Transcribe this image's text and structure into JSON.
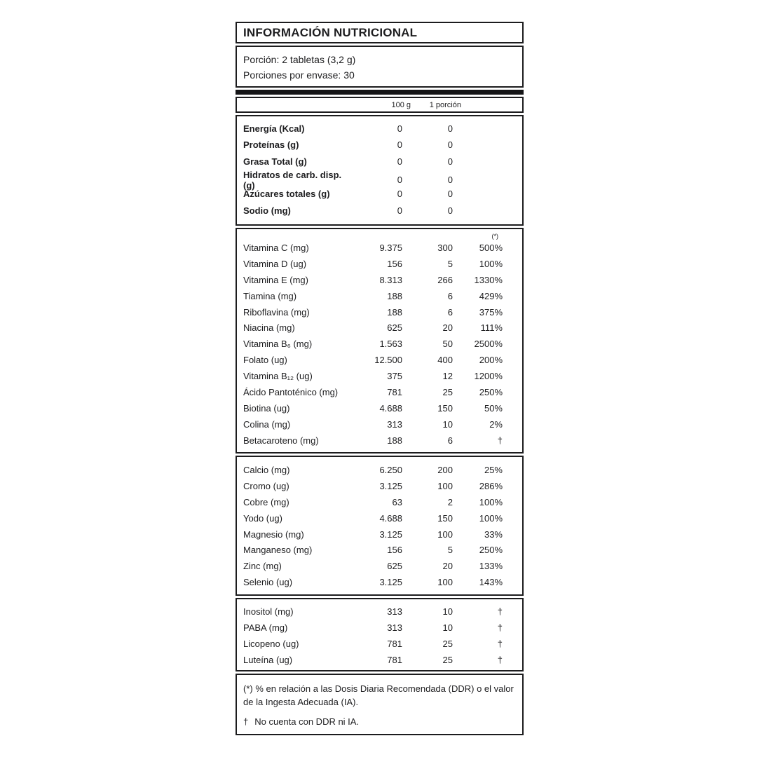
{
  "label": {
    "title": "INFORMACIÓN NUTRICIONAL",
    "serving": {
      "line1": "Porción: 2 tabletas (3,2 g)",
      "line2": "Porciones por envase: 30"
    },
    "columns": {
      "per100": "100 g",
      "perPortion": "1 porción",
      "pct_note_mark": "(*)"
    },
    "sections": {
      "macros": [
        {
          "name": "Energía (Kcal)",
          "per100": "0",
          "portion": "0",
          "pct": ""
        },
        {
          "name": "Proteínas (g)",
          "per100": "0",
          "portion": "0",
          "pct": ""
        },
        {
          "name": "Grasa Total (g)",
          "per100": "0",
          "portion": "0",
          "pct": ""
        },
        {
          "name": "Hidratos de carb. disp. (g)",
          "per100": "0",
          "portion": "0",
          "pct": ""
        },
        {
          "name": "Azúcares totales (g)",
          "per100": "0",
          "portion": "0",
          "pct": ""
        },
        {
          "name": "Sodio (mg)",
          "per100": "0",
          "portion": "0",
          "pct": ""
        }
      ],
      "vitamins": [
        {
          "name": "Vitamina C (mg)",
          "per100": "9.375",
          "portion": "300",
          "pct": "500%"
        },
        {
          "name": "Vitamina D (ug)",
          "per100": "156",
          "portion": "5",
          "pct": "100%"
        },
        {
          "name": "Vitamina E (mg)",
          "per100": "8.313",
          "portion": "266",
          "pct": "1330%"
        },
        {
          "name": "Tiamina (mg)",
          "per100": "188",
          "portion": "6",
          "pct": "429%"
        },
        {
          "name": "Riboflavina (mg)",
          "per100": "188",
          "portion": "6",
          "pct": "375%"
        },
        {
          "name": "Niacina (mg)",
          "per100": "625",
          "portion": "20",
          "pct": "111%"
        },
        {
          "name": "Vitamina B₆ (mg)",
          "per100": "1.563",
          "portion": "50",
          "pct": "2500%"
        },
        {
          "name": "Folato (ug)",
          "per100": "12.500",
          "portion": "400",
          "pct": "200%"
        },
        {
          "name": "Vitamina B₁₂ (ug)",
          "per100": "375",
          "portion": "12",
          "pct": "1200%"
        },
        {
          "name": "Ácido Pantoténico (mg)",
          "per100": "781",
          "portion": "25",
          "pct": "250%"
        },
        {
          "name": "Biotina (ug)",
          "per100": "4.688",
          "portion": "150",
          "pct": "50%"
        },
        {
          "name": "Colina (mg)",
          "per100": "313",
          "portion": "10",
          "pct": "2%"
        },
        {
          "name": "Betacaroteno (mg)",
          "per100": "188",
          "portion": "6",
          "pct": "†"
        }
      ],
      "minerals": [
        {
          "name": "Calcio (mg)",
          "per100": "6.250",
          "portion": "200",
          "pct": "25%"
        },
        {
          "name": "Cromo (ug)",
          "per100": "3.125",
          "portion": "100",
          "pct": "286%"
        },
        {
          "name": "Cobre (mg)",
          "per100": "63",
          "portion": "2",
          "pct": "100%"
        },
        {
          "name": "Yodo (ug)",
          "per100": "4.688",
          "portion": "150",
          "pct": "100%"
        },
        {
          "name": "Magnesio (mg)",
          "per100": "3.125",
          "portion": "100",
          "pct": "33%"
        },
        {
          "name": "Manganeso (mg)",
          "per100": "156",
          "portion": "5",
          "pct": "250%"
        },
        {
          "name": "Zinc (mg)",
          "per100": "625",
          "portion": "20",
          "pct": "133%"
        },
        {
          "name": "Selenio (ug)",
          "per100": "3.125",
          "portion": "100",
          "pct": "143%"
        }
      ],
      "others": [
        {
          "name": "Inositol (mg)",
          "per100": "313",
          "portion": "10",
          "pct": "†"
        },
        {
          "name": "PABA (mg)",
          "per100": "313",
          "portion": "10",
          "pct": "†"
        },
        {
          "name": "Licopeno (ug)",
          "per100": "781",
          "portion": "25",
          "pct": "†"
        },
        {
          "name": "Luteína (ug)",
          "per100": "781",
          "portion": "25",
          "pct": "†"
        }
      ]
    },
    "footnotes": {
      "note1": "(*) % en relación a las Dosis Diaria Recomendada (DDR) o el valor de la Ingesta Adecuada (IA).",
      "note2_symbol": "†",
      "note2_text": "No cuenta con DDR ni IA."
    }
  }
}
